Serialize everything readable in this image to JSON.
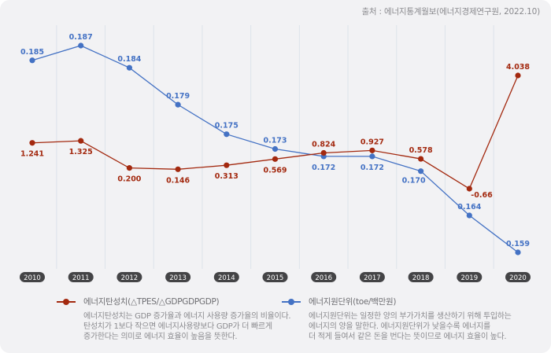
{
  "source": "출처 : 에너지통계월보(에너지경제연구원, 2022.10)",
  "colors": {
    "elasticity": "#a3290f",
    "intensity": "#4472c4",
    "background": "#f2f2f4",
    "year_pill": "#444446",
    "grid": "#dde3ea"
  },
  "chart_data": {
    "type": "line",
    "title": "",
    "xlabel": "",
    "ylabel": "",
    "x": [
      "2010",
      "2011",
      "2012",
      "2013",
      "2014",
      "2015",
      "2016",
      "2017",
      "2018",
      "2019",
      "2020"
    ],
    "grid": "vertical",
    "series": [
      {
        "name": "에너지원단위(toe/백만원)",
        "key": "intensity",
        "values": [
          0.185,
          0.187,
          0.184,
          0.179,
          0.175,
          0.173,
          0.172,
          0.172,
          0.17,
          0.164,
          0.159
        ],
        "labels": [
          "0.185",
          "0.187",
          "0.184",
          "0.179",
          "0.175",
          "0.173",
          "0.172",
          "0.172",
          "0.170",
          "0.164",
          "0.159"
        ],
        "label_pos": [
          "above",
          "above",
          "above",
          "above",
          "above",
          "above",
          "below",
          "below",
          "below-left",
          "above",
          "above"
        ],
        "range": [
          0.159,
          0.187
        ]
      },
      {
        "name": "에너지탄성치(△TPES/△GDPGDPGDP)",
        "key": "elasticity",
        "values": [
          1.241,
          1.325,
          0.2,
          0.146,
          0.313,
          0.569,
          0.824,
          0.927,
          0.578,
          -0.66,
          4.038
        ],
        "labels": [
          "1.241",
          "1.325",
          "0.200",
          "0.146",
          "0.313",
          "0.569",
          "0.824",
          "0.927",
          "0.578",
          "-0.66",
          "4.038"
        ],
        "label_pos": [
          "below",
          "below",
          "below",
          "below",
          "below",
          "below",
          "above",
          "above",
          "above",
          "below-right",
          "above"
        ],
        "range": [
          -0.66,
          4.038
        ]
      }
    ]
  },
  "legend": [
    {
      "key": "elasticity",
      "title": "에너지탄성치(△TPES/△GDPGDPGDP)",
      "description": [
        "에너지탄성치는 GDP 증가율과 에너지 사용량 증가율의 비율이다.",
        "탄성치가 1보다 작으면 에너지사용량보다 GDP가 더 빠르게",
        "증가한다는 의미로 에너지 효율이 높음을 뜻한다."
      ]
    },
    {
      "key": "intensity",
      "title": "에너지원단위(toe/백만원)",
      "description": [
        "에너지원단위는 일정한 양의 부가가치를 생산하기 위해 투입하는",
        "에너지의 양을 말한다. 에너지원단위가 낮을수록 에너지를",
        "더 적게 들여서 같은 돈을 번다는 뜻이므로 에너지 효율이 높다."
      ]
    }
  ]
}
